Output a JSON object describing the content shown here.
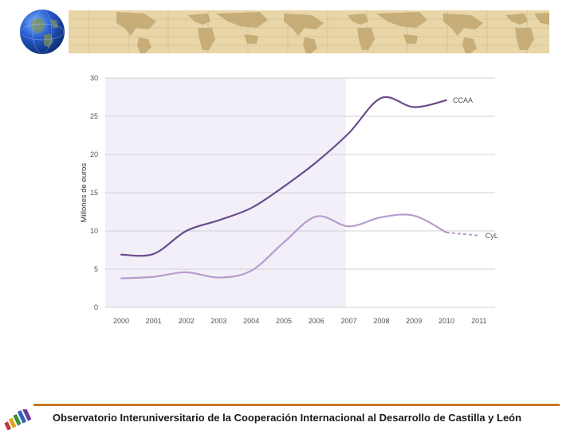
{
  "icons": {
    "globe": "globe-icon",
    "logo": "observatory-logo-icon"
  },
  "colors": {
    "banner": "#e8d6a8",
    "accent_line": "#c9781f",
    "ccaa": "#6a4b8c",
    "cyl": "#b79ccd",
    "shade": "#f3eff9"
  },
  "footer": {
    "text": "Observatorio Interuniversitario de la Cooperación Internacional al Desarrollo de Castilla y León"
  },
  "chart_data": {
    "type": "line",
    "title": "",
    "xlabel": "",
    "ylabel": "Millones de euros",
    "ylim": [
      0,
      30
    ],
    "yticks": [
      0,
      5,
      10,
      15,
      20,
      25,
      30
    ],
    "categories": [
      "2000",
      "2001",
      "2002",
      "2003",
      "2004",
      "2005",
      "2006",
      "2007",
      "2008",
      "2009",
      "2010",
      "2011"
    ],
    "shaded_range": [
      "2000",
      "2007"
    ],
    "grid": true,
    "series": [
      {
        "name": "CCAA",
        "values": [
          6.9,
          7.0,
          10.0,
          11.4,
          13.0,
          15.8,
          19.0,
          22.8,
          27.4,
          26.2,
          27.1,
          null
        ]
      },
      {
        "name": "CyL",
        "values": [
          3.8,
          4.0,
          4.6,
          3.9,
          4.8,
          8.5,
          11.9,
          10.6,
          11.8,
          12.0,
          9.8,
          9.4
        ],
        "projected_from": "2010"
      }
    ]
  }
}
